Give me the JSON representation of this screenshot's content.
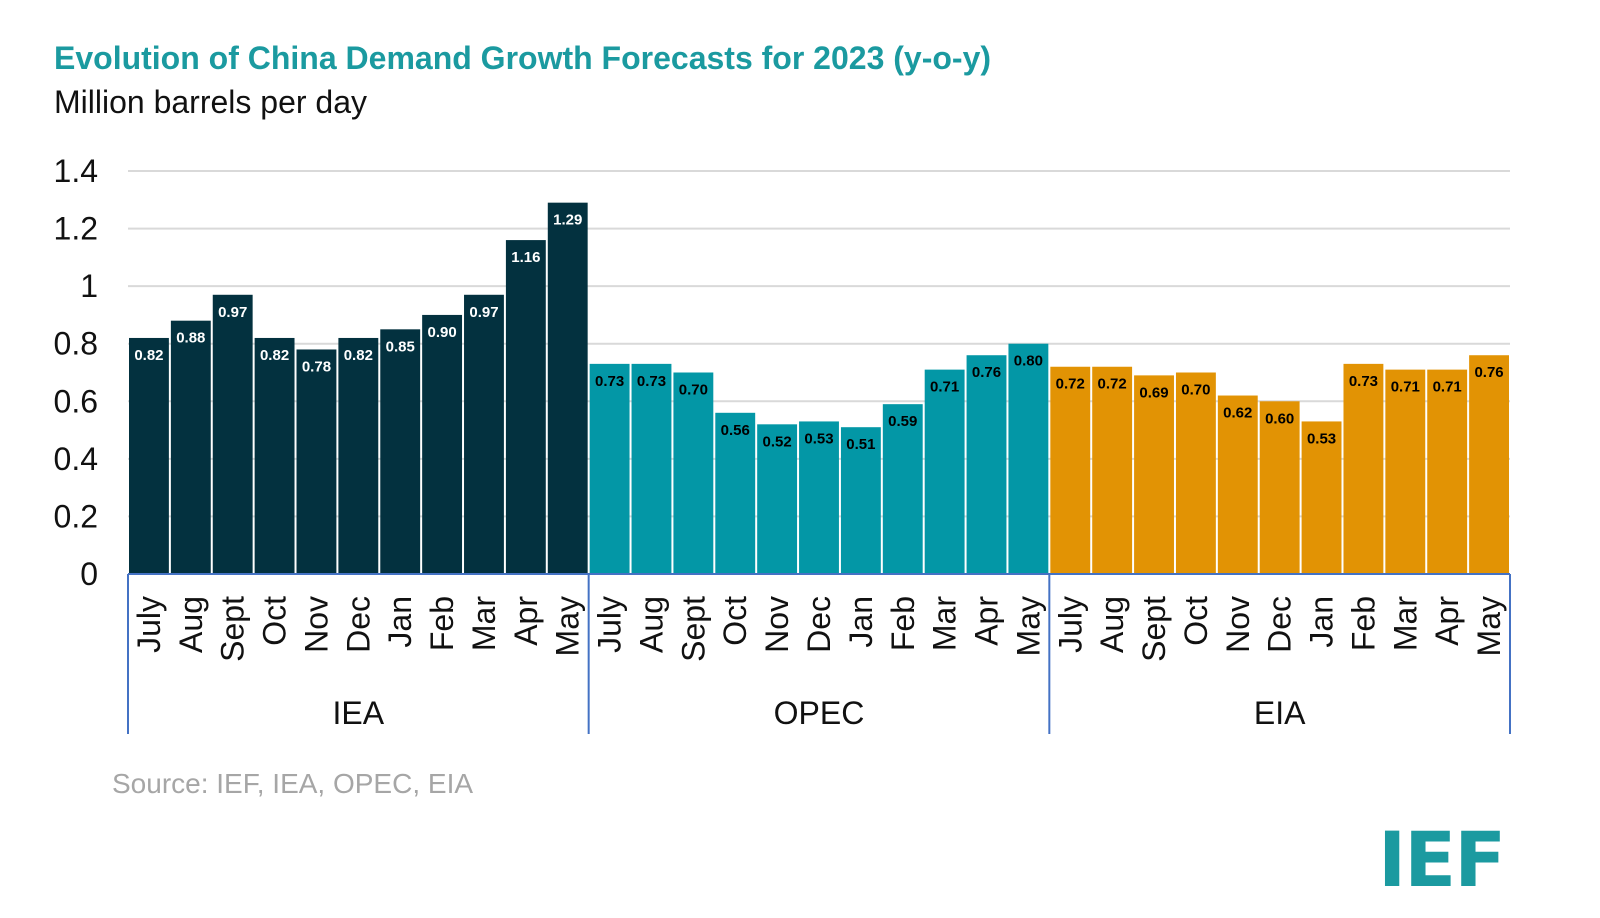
{
  "chart_data": {
    "type": "bar",
    "title": "Evolution of China Demand Growth Forecasts for 2023 (y-o-y)",
    "subtitle": "Million barrels per day",
    "ylim": [
      0,
      1.4
    ],
    "yticks": [
      "0",
      "0.2",
      "0.4",
      "0.6",
      "0.8",
      "1",
      "1.2",
      "1.4"
    ],
    "grid": true,
    "groups": [
      {
        "name": "IEA",
        "color": "#03313f",
        "label_color": "#ffffff",
        "categories": [
          "July",
          "Aug",
          "Sept",
          "Oct",
          "Nov",
          "Dec",
          "Jan",
          "Feb",
          "Mar",
          "Apr",
          "May"
        ],
        "values": [
          0.82,
          0.88,
          0.97,
          0.82,
          0.78,
          0.82,
          0.85,
          0.9,
          0.97,
          1.16,
          1.29
        ],
        "labels": [
          "0.82",
          "0.88",
          "0.97",
          "0.82",
          "0.78",
          "0.82",
          "0.85",
          "0.90",
          "0.97",
          "1.16",
          "1.29"
        ]
      },
      {
        "name": "OPEC",
        "color": "#0397a6",
        "label_color": "#000000",
        "categories": [
          "July",
          "Aug",
          "Sept",
          "Oct",
          "Nov",
          "Dec",
          "Jan",
          "Feb",
          "Mar",
          "Apr",
          "May"
        ],
        "values": [
          0.73,
          0.73,
          0.7,
          0.56,
          0.52,
          0.53,
          0.51,
          0.59,
          0.71,
          0.76,
          0.8
        ],
        "labels": [
          "0.73",
          "0.73",
          "0.70",
          "0.56",
          "0.52",
          "0.53",
          "0.51",
          "0.59",
          "0.71",
          "0.76",
          "0.80"
        ]
      },
      {
        "name": "EIA",
        "color": "#e29304",
        "label_color": "#000000",
        "categories": [
          "July",
          "Aug",
          "Sept",
          "Oct",
          "Nov",
          "Dec",
          "Jan",
          "Feb",
          "Mar",
          "Apr",
          "May"
        ],
        "values": [
          0.72,
          0.72,
          0.69,
          0.7,
          0.62,
          0.6,
          0.53,
          0.73,
          0.71,
          0.71,
          0.76
        ],
        "labels": [
          "0.72",
          "0.72",
          "0.69",
          "0.70",
          "0.62",
          "0.60",
          "0.53",
          "0.73",
          "0.71",
          "0.71",
          "0.76"
        ]
      }
    ]
  },
  "source": "Source: IEF, IEA, OPEC, EIA",
  "logo_text": "IEF"
}
